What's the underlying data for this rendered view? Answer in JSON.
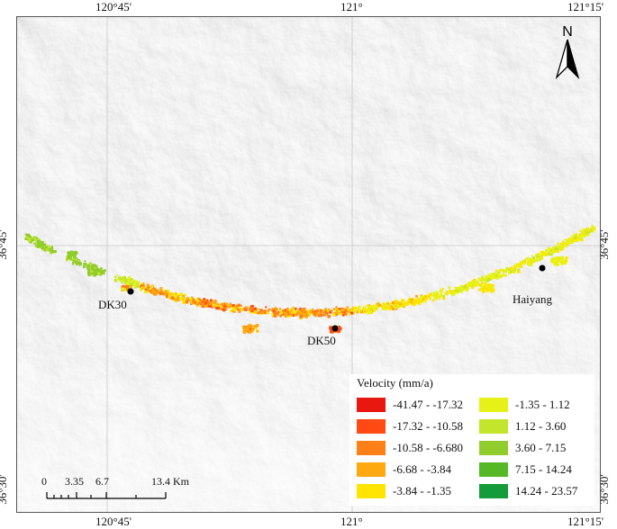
{
  "coords": {
    "top": [
      "120°45'",
      "121°",
      "121°15'"
    ],
    "bottom": [
      "120°45'",
      "121°",
      "121°15'"
    ],
    "left": [
      "36°45'",
      "36°30'"
    ],
    "right": [
      "36°45'",
      "36°30'"
    ]
  },
  "places": [
    {
      "label": "DK30"
    },
    {
      "label": "DK50"
    },
    {
      "label": "Haiyang"
    }
  ],
  "north": {
    "label": "N"
  },
  "legend": {
    "title": "Velocity (mm/a)",
    "items": [
      {
        "label": "-41.47 - -17.32",
        "color": "#e8170f"
      },
      {
        "label": "-17.32 - -10.58",
        "color": "#ff4a14"
      },
      {
        "label": "-10.58 - -6.680",
        "color": "#ff7f18"
      },
      {
        "label": "-6.68 - -3.84",
        "color": "#ffa910"
      },
      {
        "label": "-3.84 - -1.35",
        "color": "#ffe400"
      },
      {
        "label": "-1.35 - 1.12",
        "color": "#e6f217"
      },
      {
        "label": "1.12 - 3.60",
        "color": "#c3e52c"
      },
      {
        "label": "3.60 - 7.15",
        "color": "#90cc2c"
      },
      {
        "label": "7.15 - 14.24",
        "color": "#57b827"
      },
      {
        "label": "14.24 - 23.57",
        "color": "#159c3a"
      }
    ]
  },
  "scalebar": {
    "ticks": [
      "0",
      "3.35",
      "6.7",
      "13.4 Km"
    ]
  }
}
